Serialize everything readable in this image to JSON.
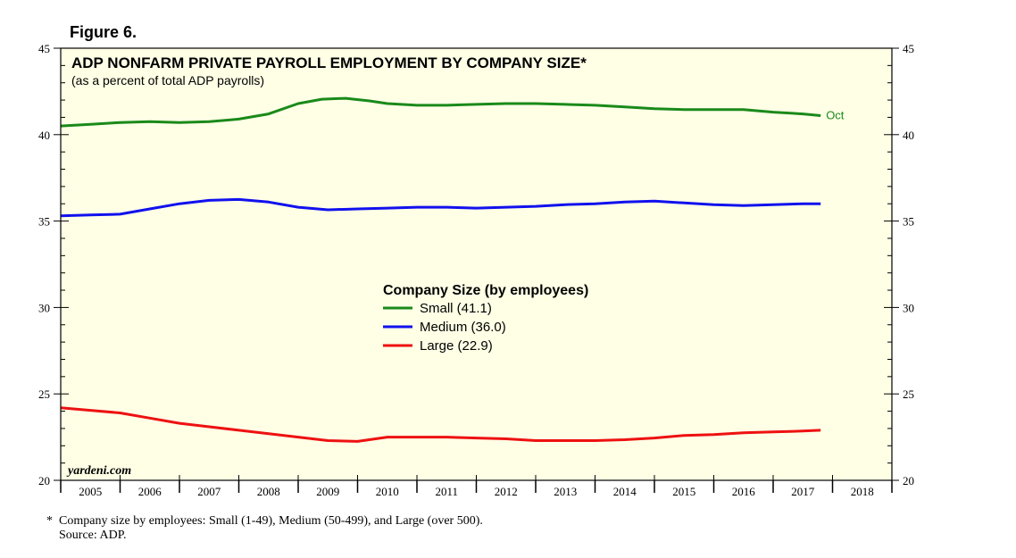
{
  "figure_label": "Figure 6.",
  "footnote": {
    "star": "*",
    "text": "Company size by employees: Small (1-49), Medium (50-499), and Large (over 500).",
    "source": "Source: ADP."
  },
  "colors": {
    "background": "#ffffe6",
    "small": "#1a8a1a",
    "medium": "#1111ee",
    "large": "#ee1111"
  },
  "chart_data": {
    "type": "line",
    "title": "ADP NONFARM PRIVATE PAYROLL EMPLOYMENT BY COMPANY SIZE*",
    "subtitle": "(as a percent of total ADP payrolls)",
    "watermark": "yardeni.com",
    "end_label": "Oct",
    "xlim": [
      2005,
      2019
    ],
    "ylim": [
      20,
      45
    ],
    "x_ticks": [
      "2005",
      "2006",
      "2007",
      "2008",
      "2009",
      "2010",
      "2011",
      "2012",
      "2013",
      "2014",
      "2015",
      "2016",
      "2017",
      "2018"
    ],
    "y_ticks": [
      20,
      25,
      30,
      35,
      40,
      45
    ],
    "legend_title": "Company Size (by employees)",
    "legend_position": "center",
    "series": [
      {
        "name": "Small",
        "legend": "Small (41.1)",
        "color_key": "small",
        "points": [
          [
            2005.0,
            40.5
          ],
          [
            2005.5,
            40.6
          ],
          [
            2006.0,
            40.7
          ],
          [
            2006.5,
            40.75
          ],
          [
            2007.0,
            40.7
          ],
          [
            2007.5,
            40.75
          ],
          [
            2008.0,
            40.9
          ],
          [
            2008.5,
            41.2
          ],
          [
            2009.0,
            41.8
          ],
          [
            2009.4,
            42.05
          ],
          [
            2009.8,
            42.1
          ],
          [
            2010.2,
            41.95
          ],
          [
            2010.5,
            41.8
          ],
          [
            2011.0,
            41.7
          ],
          [
            2011.5,
            41.7
          ],
          [
            2012.0,
            41.75
          ],
          [
            2012.5,
            41.8
          ],
          [
            2013.0,
            41.8
          ],
          [
            2013.5,
            41.75
          ],
          [
            2014.0,
            41.7
          ],
          [
            2014.5,
            41.6
          ],
          [
            2015.0,
            41.5
          ],
          [
            2015.5,
            41.45
          ],
          [
            2016.0,
            41.45
          ],
          [
            2016.5,
            41.45
          ],
          [
            2017.0,
            41.3
          ],
          [
            2017.5,
            41.2
          ],
          [
            2017.8,
            41.1
          ]
        ]
      },
      {
        "name": "Medium",
        "legend": "Medium (36.0)",
        "color_key": "medium",
        "points": [
          [
            2005.0,
            35.3
          ],
          [
            2005.5,
            35.35
          ],
          [
            2006.0,
            35.4
          ],
          [
            2006.5,
            35.7
          ],
          [
            2007.0,
            36.0
          ],
          [
            2007.5,
            36.2
          ],
          [
            2008.0,
            36.25
          ],
          [
            2008.5,
            36.1
          ],
          [
            2009.0,
            35.8
          ],
          [
            2009.5,
            35.65
          ],
          [
            2010.0,
            35.7
          ],
          [
            2010.5,
            35.75
          ],
          [
            2011.0,
            35.8
          ],
          [
            2011.5,
            35.8
          ],
          [
            2012.0,
            35.75
          ],
          [
            2012.5,
            35.8
          ],
          [
            2013.0,
            35.85
          ],
          [
            2013.5,
            35.95
          ],
          [
            2014.0,
            36.0
          ],
          [
            2014.5,
            36.1
          ],
          [
            2015.0,
            36.15
          ],
          [
            2015.5,
            36.05
          ],
          [
            2016.0,
            35.95
          ],
          [
            2016.5,
            35.9
          ],
          [
            2017.0,
            35.95
          ],
          [
            2017.5,
            36.0
          ],
          [
            2017.8,
            36.0
          ]
        ]
      },
      {
        "name": "Large",
        "legend": "Large (22.9)",
        "color_key": "large",
        "points": [
          [
            2005.0,
            24.2
          ],
          [
            2005.5,
            24.05
          ],
          [
            2006.0,
            23.9
          ],
          [
            2006.5,
            23.6
          ],
          [
            2007.0,
            23.3
          ],
          [
            2007.5,
            23.1
          ],
          [
            2008.0,
            22.9
          ],
          [
            2008.5,
            22.7
          ],
          [
            2009.0,
            22.5
          ],
          [
            2009.5,
            22.3
          ],
          [
            2010.0,
            22.25
          ],
          [
            2010.5,
            22.5
          ],
          [
            2011.0,
            22.5
          ],
          [
            2011.5,
            22.5
          ],
          [
            2012.0,
            22.45
          ],
          [
            2012.5,
            22.4
          ],
          [
            2013.0,
            22.3
          ],
          [
            2013.5,
            22.3
          ],
          [
            2014.0,
            22.3
          ],
          [
            2014.5,
            22.35
          ],
          [
            2015.0,
            22.45
          ],
          [
            2015.5,
            22.6
          ],
          [
            2016.0,
            22.65
          ],
          [
            2016.5,
            22.75
          ],
          [
            2017.0,
            22.8
          ],
          [
            2017.5,
            22.85
          ],
          [
            2017.8,
            22.9
          ]
        ]
      }
    ]
  }
}
